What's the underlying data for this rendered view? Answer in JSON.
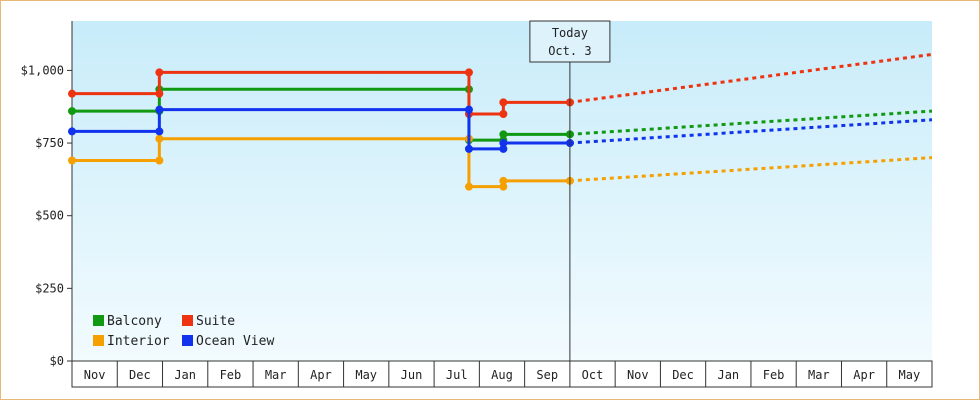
{
  "chart_data": {
    "type": "line",
    "title": "",
    "xlabel": "",
    "ylabel": "",
    "ylim": [
      0,
      1170
    ],
    "y_ticks": [
      {
        "value": 0,
        "label": "$0"
      },
      {
        "value": 250,
        "label": "$250"
      },
      {
        "value": 500,
        "label": "$500"
      },
      {
        "value": 750,
        "label": "$750"
      },
      {
        "value": 1000,
        "label": "$1,000"
      }
    ],
    "x_categories": [
      "Nov",
      "Dec",
      "Jan",
      "Feb",
      "Mar",
      "Apr",
      "May",
      "Jun",
      "Jul",
      "Aug",
      "Sep",
      "Oct",
      "Nov",
      "Dec",
      "Jan",
      "Feb",
      "Mar",
      "Apr",
      "May"
    ],
    "grid": false,
    "legend_position": "bottom-left",
    "marker": {
      "label_line1": "Today",
      "label_line2": "Oct. 3",
      "x": 11.0
    },
    "series": [
      {
        "name": "Balcony",
        "color": "#119911",
        "points": [
          [
            0.0,
            860
          ],
          [
            1.93,
            860
          ],
          [
            1.93,
            935
          ],
          [
            8.77,
            935
          ],
          [
            8.77,
            760
          ],
          [
            9.53,
            760
          ],
          [
            9.53,
            780
          ],
          [
            11.0,
            780
          ]
        ],
        "forecast": [
          [
            11.0,
            780
          ],
          [
            19.0,
            860
          ]
        ]
      },
      {
        "name": "Suite",
        "color": "#ee3311",
        "points": [
          [
            0.0,
            920
          ],
          [
            1.93,
            920
          ],
          [
            1.93,
            993
          ],
          [
            8.77,
            993
          ],
          [
            8.77,
            850
          ],
          [
            9.53,
            850
          ],
          [
            9.53,
            890
          ],
          [
            11.0,
            890
          ]
        ],
        "forecast": [
          [
            11.0,
            890
          ],
          [
            19.0,
            1055
          ]
        ]
      },
      {
        "name": "Interior",
        "color": "#f5a000",
        "points": [
          [
            0.0,
            690
          ],
          [
            1.93,
            690
          ],
          [
            1.93,
            765
          ],
          [
            8.77,
            765
          ],
          [
            8.77,
            600
          ],
          [
            9.53,
            600
          ],
          [
            9.53,
            620
          ],
          [
            11.0,
            620
          ]
        ],
        "forecast": [
          [
            11.0,
            620
          ],
          [
            19.0,
            700
          ]
        ]
      },
      {
        "name": "Ocean View",
        "color": "#1133ee",
        "points": [
          [
            0.0,
            790
          ],
          [
            1.93,
            790
          ],
          [
            1.93,
            865
          ],
          [
            8.77,
            865
          ],
          [
            8.77,
            730
          ],
          [
            9.53,
            730
          ],
          [
            9.53,
            750
          ],
          [
            11.0,
            750
          ]
        ],
        "forecast": [
          [
            11.0,
            750
          ],
          [
            19.0,
            830
          ]
        ]
      }
    ]
  }
}
